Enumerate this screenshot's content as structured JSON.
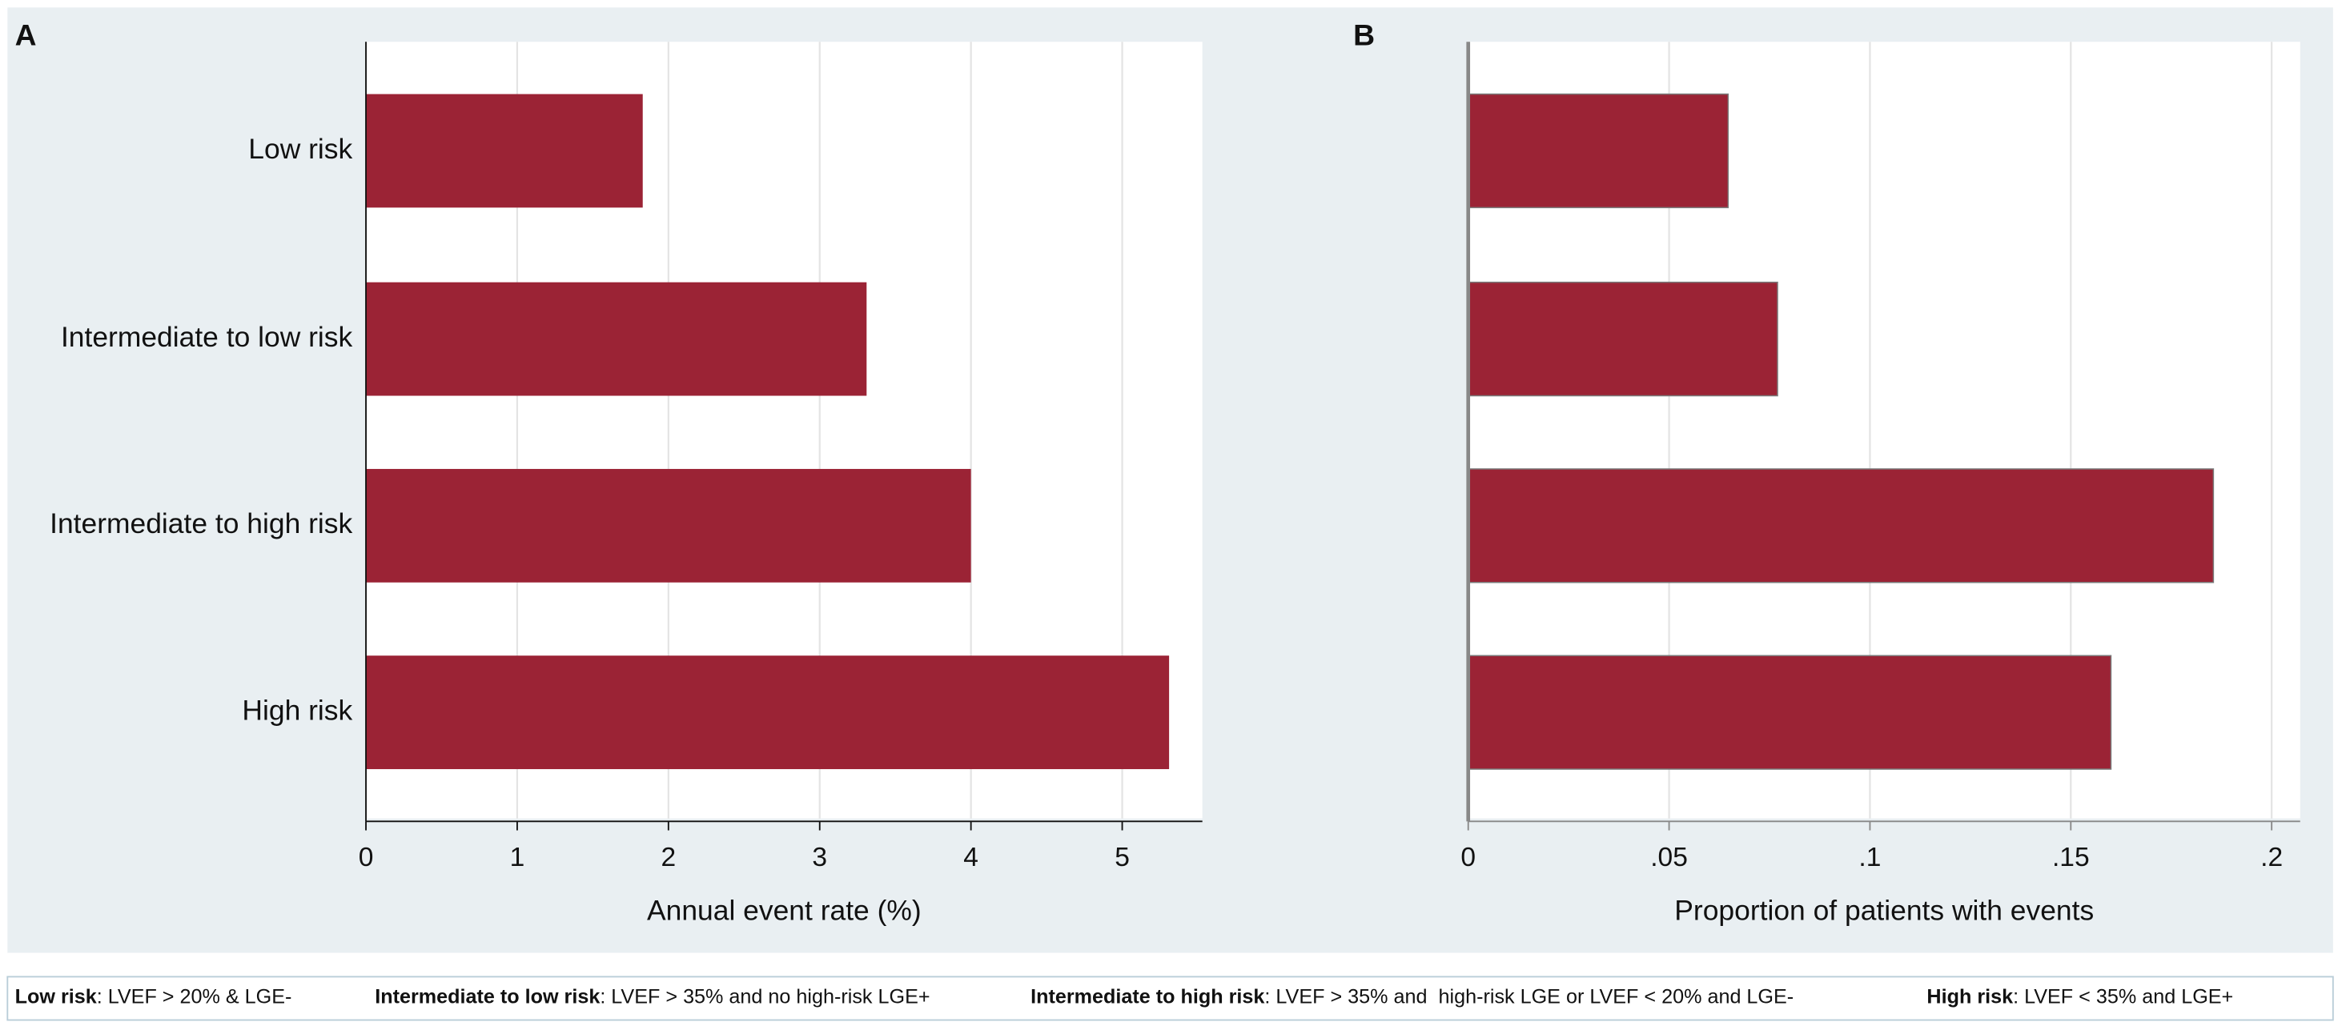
{
  "chart_data": [
    {
      "type": "bar",
      "orientation": "horizontal",
      "panel_label": "A",
      "categories": [
        "Low risk",
        "Intermediate to low risk",
        "Intermediate to high risk",
        "High risk"
      ],
      "values": [
        1.83,
        3.31,
        4.0,
        5.31
      ],
      "color": "#9b2335",
      "xlim": [
        0,
        5.53
      ],
      "xticks": [
        0,
        1,
        2,
        3,
        4,
        5
      ],
      "xlabel": "Annual event rate (%)",
      "grid": true
    },
    {
      "type": "bar",
      "orientation": "horizontal",
      "panel_label": "B",
      "categories": [
        null,
        null,
        null,
        null
      ],
      "values": [
        0.0647,
        0.077,
        0.1855,
        0.16
      ],
      "color": "#9b2335",
      "xlim": [
        0,
        0.2071
      ],
      "xticks": [
        0,
        {
          "value": 0.05,
          "label": ".05"
        },
        {
          "value": 0.1,
          "label": ".1"
        },
        {
          "value": 0.15,
          "label": ".15"
        },
        {
          "value": 0.2,
          "label": ".2"
        }
      ],
      "xlabel": "Proportion of patients with events",
      "grid": true
    }
  ],
  "footer": [
    {
      "term": "Low risk",
      "text": ": LVEF > 20% & LGE-"
    },
    {
      "term": "Intermediate to low risk",
      "text": ": LVEF > 35% and no high-risk LGE+"
    },
    {
      "term": "Intermediate to high risk",
      "text": ": LVEF > 35% and  high-risk LGE or LVEF < 20% and LGE-"
    },
    {
      "term": "High risk",
      "text": ": LVEF < 35% and LGE+"
    }
  ]
}
